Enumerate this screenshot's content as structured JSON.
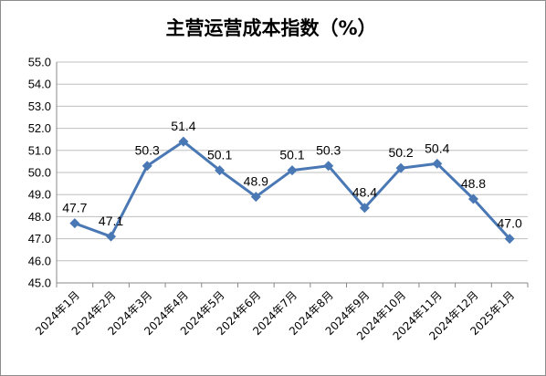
{
  "chart_data": {
    "type": "line",
    "title": "主营运营成本指数（%）",
    "categories": [
      "2024年1月",
      "2024年2月",
      "2024年3月",
      "2024年4月",
      "2024年5月",
      "2024年6月",
      "2024年7月",
      "2024年8月",
      "2024年9月",
      "2024年10月",
      "2024年11月",
      "2024年12月",
      "2025年1月"
    ],
    "series": [
      {
        "values": [
          47.7,
          47.1,
          50.3,
          51.4,
          50.1,
          48.9,
          50.1,
          50.3,
          48.4,
          50.2,
          50.4,
          48.8,
          47.0
        ]
      }
    ],
    "data_labels": [
      "47.7",
      "47.1",
      "50.3",
      "51.4",
      "50.1",
      "48.9",
      "50.1",
      "50.3",
      "48.4",
      "50.2",
      "50.4",
      "48.8",
      "47.0"
    ],
    "ylim": [
      45.0,
      55.0
    ],
    "yticks": [
      "45.0",
      "46.0",
      "47.0",
      "48.0",
      "49.0",
      "50.0",
      "51.0",
      "52.0",
      "53.0",
      "54.0",
      "55.0"
    ],
    "grid": true,
    "legend": "none",
    "xlabel": "",
    "ylabel": "",
    "colors": {
      "series": "#4a78b5",
      "grid": "#bfbfbf"
    }
  }
}
